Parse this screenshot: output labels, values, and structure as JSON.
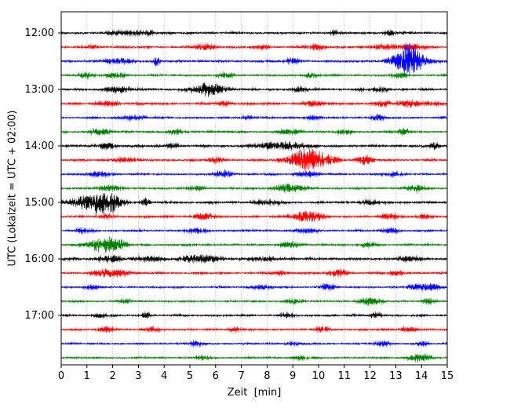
{
  "axes": {
    "xlabel": "Zeit  [min]",
    "ylabel": "UTC (Lokalzeit = UTC + 02:00)",
    "xticks": [
      "0",
      "1",
      "2",
      "3",
      "4",
      "5",
      "6",
      "7",
      "8",
      "9",
      "10",
      "11",
      "12",
      "13",
      "14",
      "15"
    ],
    "yticks": [
      {
        "row": 0,
        "label": "12:00"
      },
      {
        "row": 4,
        "label": "13:00"
      },
      {
        "row": 8,
        "label": "14:00"
      },
      {
        "row": 12,
        "label": "15:00"
      },
      {
        "row": 16,
        "label": "16:00"
      },
      {
        "row": 20,
        "label": "17:00"
      }
    ],
    "grid": "vertical-dotted"
  },
  "chart_data": {
    "type": "line",
    "variant": "helicorder-seismogram",
    "x_range_minutes": [
      0,
      15
    ],
    "minutes_per_row": 15,
    "colors": {
      "black": "#000000",
      "red": "#ff0000",
      "blue": "#0000ff",
      "green": "#008000"
    },
    "rows": [
      {
        "time": "12:00",
        "color": "black",
        "noise": 1.6,
        "events": [
          [
            2.0,
            2.5,
            0.15
          ],
          [
            2.8,
            3,
            0.3
          ],
          [
            3.4,
            2.5,
            0.15
          ],
          [
            10.6,
            2,
            0.1
          ],
          [
            12.8,
            3,
            0.15
          ]
        ]
      },
      {
        "time": "12:15",
        "color": "red",
        "noise": 1.7,
        "events": [
          [
            1.2,
            2,
            0.15
          ],
          [
            5.6,
            4,
            0.25
          ],
          [
            7.9,
            2.5,
            0.15
          ],
          [
            9.9,
            3,
            0.2
          ],
          [
            12.6,
            3,
            0.3
          ],
          [
            13.6,
            4,
            0.3
          ]
        ]
      },
      {
        "time": "12:30",
        "color": "blue",
        "noise": 1.7,
        "events": [
          [
            2.3,
            3,
            0.4
          ],
          [
            3.7,
            6,
            0.07
          ],
          [
            9.0,
            2.5,
            0.2
          ],
          [
            12.9,
            5,
            0.2
          ],
          [
            13.45,
            22,
            0.3
          ],
          [
            13.95,
            7,
            0.25
          ]
        ]
      },
      {
        "time": "12:45",
        "color": "green",
        "noise": 1.5,
        "events": [
          [
            0.9,
            3,
            0.2
          ],
          [
            2.1,
            3.5,
            0.25
          ],
          [
            6.4,
            2.5,
            0.2
          ],
          [
            9.7,
            3,
            0.2
          ],
          [
            13.2,
            3,
            0.25
          ]
        ]
      },
      {
        "time": "13:00",
        "color": "black",
        "noise": 1.8,
        "events": [
          [
            2.2,
            4,
            0.3
          ],
          [
            5.6,
            8,
            0.3
          ],
          [
            6.1,
            5,
            0.25
          ],
          [
            9.3,
            2.5,
            0.2
          ],
          [
            12.4,
            3,
            0.2
          ]
        ]
      },
      {
        "time": "13:15",
        "color": "red",
        "noise": 1.8,
        "events": [
          [
            1.9,
            3.5,
            0.25
          ],
          [
            6.3,
            2.5,
            0.2
          ],
          [
            9.8,
            3,
            0.25
          ],
          [
            12.5,
            3.5,
            0.2
          ],
          [
            13.5,
            5,
            0.25
          ],
          [
            14.4,
            3,
            0.15
          ]
        ]
      },
      {
        "time": "13:30",
        "color": "blue",
        "noise": 1.5,
        "events": [
          [
            2.8,
            2.5,
            0.3
          ],
          [
            7.3,
            2,
            0.2
          ],
          [
            9.8,
            2,
            0.2
          ],
          [
            12.3,
            4,
            0.15
          ]
        ]
      },
      {
        "time": "13:45",
        "color": "green",
        "noise": 1.6,
        "events": [
          [
            1.5,
            4,
            0.25
          ],
          [
            4.5,
            2.5,
            0.2
          ],
          [
            8.9,
            3.5,
            0.25
          ],
          [
            11.0,
            2.5,
            0.2
          ],
          [
            13.3,
            4,
            0.2
          ]
        ]
      },
      {
        "time": "14:00",
        "color": "black",
        "noise": 1.8,
        "events": [
          [
            1.8,
            4,
            0.2
          ],
          [
            4.3,
            2.5,
            0.2
          ],
          [
            8.3,
            4,
            0.5
          ],
          [
            9.0,
            3.5,
            0.3
          ],
          [
            14.5,
            5,
            0.1
          ]
        ]
      },
      {
        "time": "14:15",
        "color": "red",
        "noise": 1.7,
        "events": [
          [
            2.5,
            2.5,
            0.3
          ],
          [
            6.0,
            2.5,
            0.2
          ],
          [
            9.5,
            16,
            0.45
          ],
          [
            10.3,
            6,
            0.3
          ],
          [
            11.8,
            5,
            0.2
          ]
        ]
      },
      {
        "time": "14:30",
        "color": "blue",
        "noise": 1.5,
        "events": [
          [
            1.5,
            3,
            0.3
          ],
          [
            6.3,
            5,
            0.2
          ],
          [
            9.5,
            4,
            0.25
          ],
          [
            13.0,
            2.5,
            0.2
          ]
        ]
      },
      {
        "time": "14:45",
        "color": "green",
        "noise": 1.6,
        "events": [
          [
            1.8,
            3.5,
            0.3
          ],
          [
            5.3,
            2.5,
            0.2
          ],
          [
            8.7,
            5,
            0.3
          ],
          [
            9.3,
            3,
            0.2
          ],
          [
            13.8,
            4,
            0.2
          ]
        ]
      },
      {
        "time": "15:00",
        "color": "black",
        "noise": 1.8,
        "events": [
          [
            1.3,
            14,
            0.5
          ],
          [
            1.9,
            8,
            0.3
          ],
          [
            3.3,
            5,
            0.1
          ],
          [
            8.0,
            2.5,
            0.3
          ],
          [
            12.0,
            2.5,
            0.2
          ]
        ]
      },
      {
        "time": "15:15",
        "color": "red",
        "noise": 1.7,
        "events": [
          [
            1.8,
            2.5,
            0.2
          ],
          [
            5.5,
            4,
            0.25
          ],
          [
            9.4,
            7,
            0.3
          ],
          [
            9.9,
            4,
            0.2
          ],
          [
            12.8,
            3.5,
            0.2
          ],
          [
            14.1,
            3,
            0.15
          ]
        ]
      },
      {
        "time": "15:30",
        "color": "blue",
        "noise": 1.5,
        "events": [
          [
            0.9,
            3,
            0.2
          ],
          [
            5.3,
            3.5,
            0.2
          ],
          [
            9.5,
            3,
            0.25
          ],
          [
            12.8,
            3,
            0.2
          ]
        ]
      },
      {
        "time": "15:45",
        "color": "green",
        "noise": 1.6,
        "events": [
          [
            1.6,
            11,
            0.35
          ],
          [
            2.2,
            5,
            0.25
          ],
          [
            8.8,
            3,
            0.25
          ],
          [
            12.0,
            2,
            0.2
          ]
        ]
      },
      {
        "time": "16:00",
        "color": "black",
        "noise": 1.9,
        "events": [
          [
            1.9,
            4,
            0.3
          ],
          [
            3.5,
            3,
            0.3
          ],
          [
            5.2,
            5,
            0.3
          ],
          [
            5.8,
            4,
            0.25
          ],
          [
            8.0,
            2.5,
            0.3
          ],
          [
            13.5,
            3,
            0.2
          ]
        ]
      },
      {
        "time": "16:15",
        "color": "red",
        "noise": 1.6,
        "events": [
          [
            1.7,
            5,
            0.3
          ],
          [
            2.3,
            4,
            0.25
          ],
          [
            8.5,
            2.5,
            0.2
          ],
          [
            10.8,
            5,
            0.25
          ],
          [
            13.0,
            2.5,
            0.2
          ]
        ]
      },
      {
        "time": "16:30",
        "color": "blue",
        "noise": 1.4,
        "events": [
          [
            1.2,
            2.5,
            0.2
          ],
          [
            7.8,
            2.5,
            0.25
          ],
          [
            10.3,
            3,
            0.2
          ],
          [
            13.7,
            3,
            0.2
          ],
          [
            14.3,
            5,
            0.25
          ]
        ]
      },
      {
        "time": "16:45",
        "color": "green",
        "noise": 1.4,
        "events": [
          [
            2.5,
            2,
            0.2
          ],
          [
            9.0,
            2.5,
            0.25
          ],
          [
            12.0,
            5,
            0.3
          ],
          [
            14.3,
            3,
            0.2
          ]
        ]
      },
      {
        "time": "17:00",
        "color": "black",
        "noise": 1.5,
        "events": [
          [
            1.5,
            2.5,
            0.2
          ],
          [
            3.3,
            5,
            0.1
          ],
          [
            8.8,
            2,
            0.2
          ],
          [
            12.2,
            2.5,
            0.2
          ]
        ]
      },
      {
        "time": "17:15",
        "color": "red",
        "noise": 1.5,
        "events": [
          [
            1.8,
            3.5,
            0.2
          ],
          [
            3.6,
            3,
            0.15
          ],
          [
            6.8,
            2.5,
            0.2
          ],
          [
            10.2,
            3,
            0.2
          ],
          [
            13.5,
            3.5,
            0.2
          ]
        ]
      },
      {
        "time": "17:30",
        "color": "blue",
        "noise": 1.4,
        "events": [
          [
            5.2,
            3.5,
            0.15
          ],
          [
            9.0,
            2,
            0.2
          ],
          [
            12.5,
            3,
            0.2
          ],
          [
            14.0,
            2.5,
            0.15
          ]
        ]
      },
      {
        "time": "17:45",
        "color": "green",
        "noise": 1.4,
        "events": [
          [
            5.5,
            2.5,
            0.2
          ],
          [
            9.3,
            2,
            0.2
          ],
          [
            13.9,
            5,
            0.3
          ]
        ]
      }
    ]
  }
}
